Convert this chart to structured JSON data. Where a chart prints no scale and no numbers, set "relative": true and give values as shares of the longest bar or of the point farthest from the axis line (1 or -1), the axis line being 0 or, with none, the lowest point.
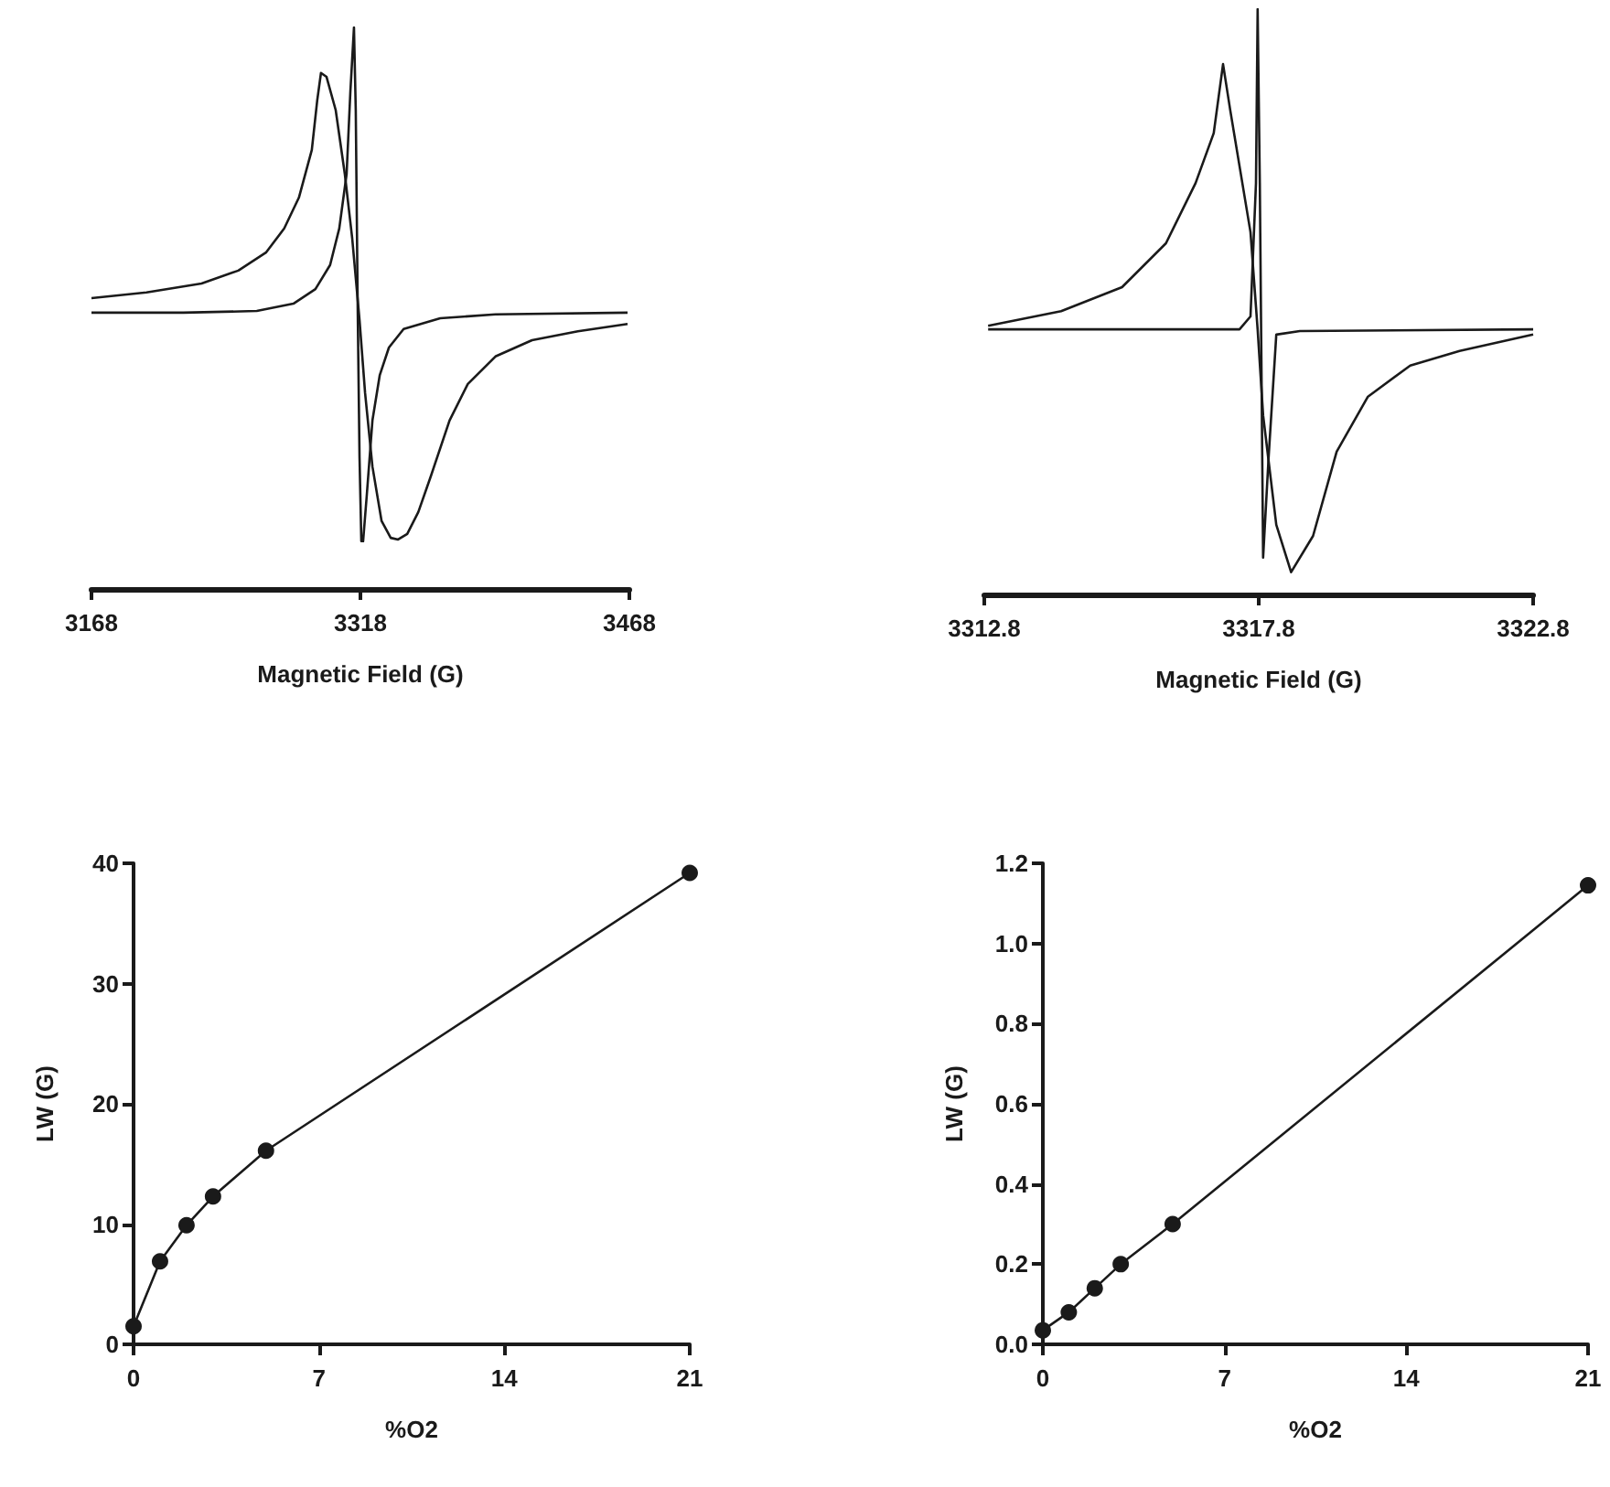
{
  "chart_data": [
    {
      "type": "line",
      "relative": true,
      "xlabel": "Magnetic Field (G)",
      "xlim": [
        3168,
        3468
      ],
      "xticks": [
        3168,
        3318,
        3468
      ],
      "marker": "none",
      "line_style": "solid",
      "tick_labels": "x",
      "series": [
        {
          "color": "#1a1a1a",
          "x": [
            3168,
            3198.7,
            3229.4,
            3249.9,
            3265.3,
            3275.5,
            3283.7,
            3290.9,
            3293.9,
            3296,
            3299.1,
            3304.2,
            3309.3,
            3313.4,
            3317.5,
            3320.6,
            3324.7,
            3329.8,
            3334.9,
            3339,
            3344.1,
            3350.3,
            3357.4,
            3367.7,
            3377.9,
            3393.3,
            3413.7,
            3439.3,
            3467
          ],
          "values": [
            0.518,
            0.528,
            0.544,
            0.567,
            0.599,
            0.642,
            0.697,
            0.782,
            0.87,
            0.919,
            0.912,
            0.853,
            0.739,
            0.625,
            0.479,
            0.349,
            0.218,
            0.121,
            0.091,
            0.088,
            0.098,
            0.137,
            0.202,
            0.3,
            0.365,
            0.414,
            0.443,
            0.459,
            0.472
          ]
        },
        {
          "color": "#1a1a1a",
          "x": [
            3168,
            3219.2,
            3260.2,
            3280.6,
            3292.9,
            3301.1,
            3306.2,
            3310.3,
            3312.4,
            3314.4,
            3315.4,
            3316.5,
            3317.5,
            3318.5,
            3319.5,
            3321.6,
            3324.7,
            3328.8,
            3333.9,
            3342.1,
            3362.5,
            3393.3,
            3467
          ],
          "values": [
            0.492,
            0.492,
            0.495,
            0.508,
            0.534,
            0.577,
            0.642,
            0.739,
            0.886,
            1,
            0.853,
            0.495,
            0.235,
            0.085,
            0.085,
            0.169,
            0.3,
            0.381,
            0.43,
            0.463,
            0.482,
            0.489,
            0.492
          ]
        }
      ]
    },
    {
      "type": "line",
      "relative": true,
      "xlabel": "Magnetic Field (G)",
      "xlim": [
        3312.8,
        3322.8
      ],
      "xticks": [
        3312.8,
        3317.8,
        3322.8
      ],
      "marker": "none",
      "line_style": "solid",
      "tick_labels": "x",
      "series": [
        {
          "color": "#1a1a1a",
          "x": [
            3312.87,
            3314.2,
            3315.31,
            3316.11,
            3316.65,
            3316.98,
            3317.15,
            3317.28,
            3317.65,
            3317.78,
            3317.88,
            3318.12,
            3318.39,
            3318.79,
            3319.22,
            3319.79,
            3320.56,
            3321.46,
            3322.8
          ],
          "values": [
            0.459,
            0.484,
            0.525,
            0.6,
            0.703,
            0.788,
            0.906,
            0.828,
            0.619,
            0.453,
            0.306,
            0.119,
            0.038,
            0.1,
            0.244,
            0.338,
            0.391,
            0.416,
            0.444
          ]
        },
        {
          "color": "#1a1a1a",
          "x": [
            3312.87,
            3317.45,
            3317.65,
            3317.75,
            3317.78,
            3317.82,
            3317.88,
            3317.98,
            3318.12,
            3318.55,
            3322.8
          ],
          "values": [
            0.453,
            0.453,
            0.475,
            0.703,
            1,
            0.703,
            0.063,
            0.234,
            0.444,
            0.45,
            0.453
          ]
        }
      ]
    },
    {
      "type": "line",
      "xlabel": "%O2",
      "ylabel": "LW (G)",
      "xlim": [
        0,
        21
      ],
      "xticks": [
        0,
        7,
        14,
        21
      ],
      "ylim": [
        0,
        40
      ],
      "yticks": [
        0,
        10,
        20,
        30,
        40
      ],
      "marker": "circle",
      "line_style": "solid",
      "series": [
        {
          "color": "#1a1a1a",
          "x": [
            0,
            1,
            2,
            3,
            5,
            21
          ],
          "values": [
            1.5,
            6.9,
            9.9,
            12.3,
            16.1,
            39.2
          ]
        }
      ]
    },
    {
      "type": "line",
      "xlabel": "%O2",
      "ylabel": "LW (G)",
      "xlim": [
        0,
        21
      ],
      "xticks": [
        0,
        7,
        14,
        21
      ],
      "ylim": [
        0,
        1.2
      ],
      "yticks": [
        {
          "value": 0,
          "label": "0.0"
        },
        0.2,
        0.4,
        0.6,
        0.8,
        {
          "value": 1,
          "label": "1.0"
        },
        1.2
      ],
      "marker": "circle",
      "line_style": "solid",
      "series": [
        {
          "color": "#1a1a1a",
          "x": [
            0,
            1,
            2,
            3,
            5,
            21
          ],
          "values": [
            0.035,
            0.08,
            0.14,
            0.2,
            0.3,
            1.145
          ]
        }
      ]
    }
  ]
}
